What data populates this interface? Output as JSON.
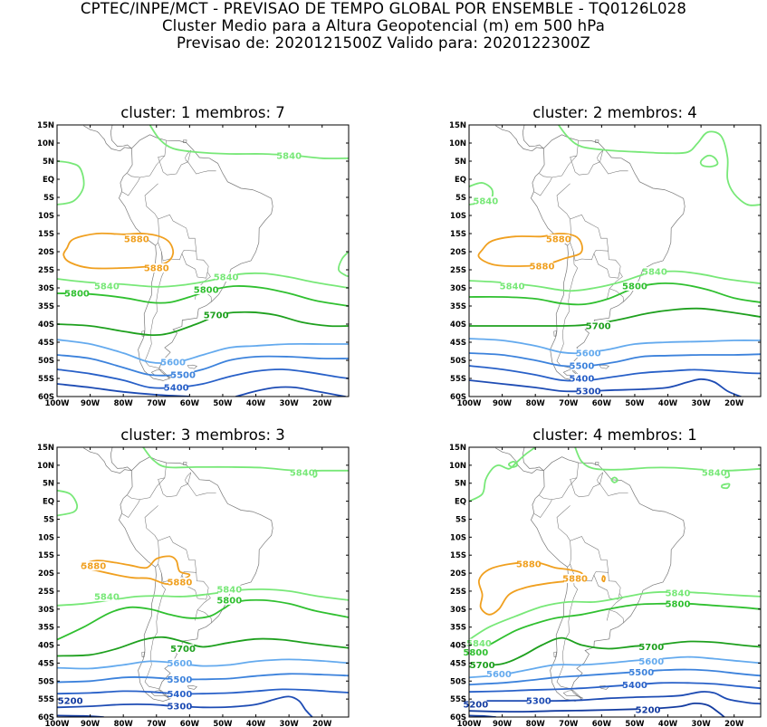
{
  "header": {
    "line1": "CPTEC/INPE/MCT - PREVISAO DE TEMPO GLOBAL POR ENSEMBLE - TQ0126L028",
    "line2": "Cluster Medio para a Altura Geopotencial (m) em 500 hPa",
    "line3": "Previsao de: 2020121500Z    Valido para: 2020122300Z"
  },
  "colors": {
    "c5880": "#f0a020",
    "c5840": "#78e878",
    "c5800": "#30c030",
    "c5700": "#1ea01e",
    "c5600": "#64aaee",
    "c5500": "#3c82dc",
    "c5400": "#2860c8",
    "c5300": "#1e4cb4",
    "c5200": "#143ca0",
    "coast": "#777777"
  },
  "chart_data": [
    {
      "type": "contour",
      "title": "cluster: 1   membros: 7",
      "x_tick_labels": [
        "100W",
        "90W",
        "80W",
        "70W",
        "60W",
        "50W",
        "40W",
        "30W",
        "20W"
      ],
      "y_tick_labels": [
        "15N",
        "10N",
        "5N",
        "EQ",
        "5S",
        "10S",
        "15S",
        "20S",
        "25S",
        "30S",
        "35S",
        "40S",
        "45S",
        "50S",
        "55S",
        "60S"
      ],
      "xlim": [
        -100,
        -12
      ],
      "ylim": [
        -60,
        15
      ],
      "contour_labels": [
        {
          "text": "5880",
          "level": "c5880",
          "lon": -76,
          "lat": -16.5
        },
        {
          "text": "5880",
          "level": "c5880",
          "lon": -70,
          "lat": -24.5
        },
        {
          "text": "5840",
          "level": "c5840",
          "lon": -30,
          "lat": 6.5
        },
        {
          "text": "5840",
          "level": "c5840",
          "lon": -49,
          "lat": -27
        },
        {
          "text": "5840",
          "level": "c5840",
          "lon": -85,
          "lat": -29.5
        },
        {
          "text": "5800",
          "level": "c5800",
          "lon": -55,
          "lat": -30.5
        },
        {
          "text": "5800",
          "level": "c5800",
          "lon": -94,
          "lat": -31.5
        },
        {
          "text": "5700",
          "level": "c5700",
          "lon": -52,
          "lat": -37.5
        },
        {
          "text": "5600",
          "level": "c5600",
          "lon": -65,
          "lat": -50.5
        },
        {
          "text": "5500",
          "level": "c5500",
          "lon": -62,
          "lat": -54
        },
        {
          "text": "5400",
          "level": "c5400",
          "lon": -64,
          "lat": -57.5
        }
      ]
    },
    {
      "type": "contour",
      "title": "cluster: 2   membros: 4",
      "x_tick_labels": [
        "100W",
        "90W",
        "80W",
        "70W",
        "60W",
        "50W",
        "40W",
        "30W",
        "20W"
      ],
      "y_tick_labels": [
        "15N",
        "10N",
        "5N",
        "EQ",
        "5S",
        "10S",
        "15S",
        "20S",
        "25S",
        "30S",
        "35S",
        "40S",
        "45S",
        "50S",
        "55S",
        "60S"
      ],
      "xlim": [
        -100,
        -12
      ],
      "ylim": [
        -60,
        15
      ],
      "contour_labels": [
        {
          "text": "5880",
          "level": "c5880",
          "lon": -73,
          "lat": -16.5
        },
        {
          "text": "5880",
          "level": "c5880",
          "lon": -78,
          "lat": -24
        },
        {
          "text": "5840",
          "level": "c5840",
          "lon": -95,
          "lat": -6
        },
        {
          "text": "5840",
          "level": "c5840",
          "lon": -44,
          "lat": -25.5
        },
        {
          "text": "5840",
          "level": "c5840",
          "lon": -87,
          "lat": -29.5
        },
        {
          "text": "5800",
          "level": "c5800",
          "lon": -50,
          "lat": -29.5
        },
        {
          "text": "5700",
          "level": "c5700",
          "lon": -61,
          "lat": -40.5
        },
        {
          "text": "5600",
          "level": "c5600",
          "lon": -64,
          "lat": -48
        },
        {
          "text": "5500",
          "level": "c5500",
          "lon": -66,
          "lat": -51.5
        },
        {
          "text": "5400",
          "level": "c5400",
          "lon": -66,
          "lat": -55
        },
        {
          "text": "5300",
          "level": "c5300",
          "lon": -64,
          "lat": -58.5
        }
      ]
    },
    {
      "type": "contour",
      "title": "cluster: 3   membros: 3",
      "x_tick_labels": [
        "100W",
        "90W",
        "80W",
        "70W",
        "60W",
        "50W",
        "40W",
        "30W",
        "20W"
      ],
      "y_tick_labels": [
        "15N",
        "10N",
        "5N",
        "EQ",
        "5S",
        "10S",
        "15S",
        "20S",
        "25S",
        "30S",
        "35S",
        "40S",
        "45S",
        "50S",
        "55S",
        "60S"
      ],
      "xlim": [
        -100,
        -12
      ],
      "ylim": [
        -60,
        15
      ],
      "contour_labels": [
        {
          "text": "5880",
          "level": "c5880",
          "lon": -89,
          "lat": -18
        },
        {
          "text": "5880",
          "level": "c5880",
          "lon": -63,
          "lat": -22.5
        },
        {
          "text": "5840",
          "level": "c5840",
          "lon": -26,
          "lat": 8
        },
        {
          "text": "5840",
          "level": "c5840",
          "lon": -48,
          "lat": -24.5
        },
        {
          "text": "5840",
          "level": "c5840",
          "lon": -85,
          "lat": -26.5
        },
        {
          "text": "5800",
          "level": "c5800",
          "lon": -48,
          "lat": -27.5
        },
        {
          "text": "5700",
          "level": "c5700",
          "lon": -62,
          "lat": -41
        },
        {
          "text": "5600",
          "level": "c5600",
          "lon": -63,
          "lat": -45
        },
        {
          "text": "5500",
          "level": "c5500",
          "lon": -63,
          "lat": -49.5
        },
        {
          "text": "5400",
          "level": "c5400",
          "lon": -63,
          "lat": -53.5
        },
        {
          "text": "5300",
          "level": "c5300",
          "lon": -63,
          "lat": -57
        },
        {
          "text": "5200",
          "level": "c5200",
          "lon": -96,
          "lat": -55.5
        }
      ]
    },
    {
      "type": "contour",
      "title": "cluster: 4   membros: 1",
      "x_tick_labels": [
        "100W",
        "90W",
        "80W",
        "70W",
        "60W",
        "50W",
        "40W",
        "30W",
        "20W"
      ],
      "y_tick_labels": [
        "15N",
        "10N",
        "5N",
        "EQ",
        "5S",
        "10S",
        "15S",
        "20S",
        "25S",
        "30S",
        "35S",
        "40S",
        "45S",
        "50S",
        "55S",
        "60S"
      ],
      "xlim": [
        -100,
        -12
      ],
      "ylim": [
        -60,
        15
      ],
      "contour_labels": [
        {
          "text": "5880",
          "level": "c5880",
          "lon": -82,
          "lat": -17.5
        },
        {
          "text": "5880",
          "level": "c5880",
          "lon": -68,
          "lat": -21.5
        },
        {
          "text": "5840",
          "level": "c5840",
          "lon": -26,
          "lat": 8
        },
        {
          "text": "5840",
          "level": "c5840",
          "lon": -37,
          "lat": -25.5
        },
        {
          "text": "5840",
          "level": "c5840",
          "lon": -97,
          "lat": -39.5
        },
        {
          "text": "5800",
          "level": "c5800",
          "lon": -37,
          "lat": -28.5
        },
        {
          "text": "5800",
          "level": "c5800",
          "lon": -98,
          "lat": -42
        },
        {
          "text": "5700",
          "level": "c5700",
          "lon": -45,
          "lat": -40.5
        },
        {
          "text": "5700",
          "level": "c5700",
          "lon": -96,
          "lat": -45.5
        },
        {
          "text": "5600",
          "level": "c5600",
          "lon": -45,
          "lat": -44.5
        },
        {
          "text": "5600",
          "level": "c5600",
          "lon": -91,
          "lat": -48
        },
        {
          "text": "5500",
          "level": "c5500",
          "lon": -48,
          "lat": -47.5
        },
        {
          "text": "5400",
          "level": "c5400",
          "lon": -50,
          "lat": -51
        },
        {
          "text": "5300",
          "level": "c5300",
          "lon": -79,
          "lat": -55.5
        },
        {
          "text": "5200",
          "level": "c5200",
          "lon": -98,
          "lat": -56.5
        },
        {
          "text": "5200",
          "level": "c5200",
          "lon": -46,
          "lat": -58
        }
      ]
    }
  ]
}
